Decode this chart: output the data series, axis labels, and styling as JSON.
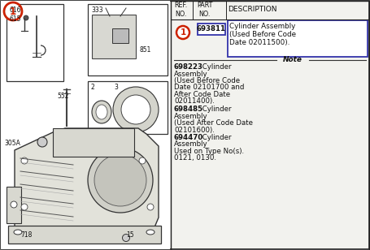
{
  "bg_color": "#f2f2ee",
  "border_color": "#222222",
  "text_color": "#111111",
  "divx": 0.462,
  "highlight_circle_color": "#cc2200",
  "highlight_box_color": "#3333aa",
  "header": {
    "ref_no": "REF.\nNO.",
    "part_no": "PART\nNO.",
    "description": "DESCRIPTION"
  },
  "part_number": "693811",
  "desc_line1": "Cylinder Assembly",
  "desc_line2": "(Used Before Code",
  "desc_line3": "Date 02011500).",
  "note_label": "Note",
  "notes": [
    {
      "bold": "698223",
      "plain": " Cylinder Assembly\n(Used Before Code\nDate 02101700 and\nAfter Code Date\n02011400)."
    },
    {
      "bold": "698485",
      "plain": " Cylinder\nAssembly\n(Used After Code Date\n02101600)."
    },
    {
      "bold": "694470",
      "plain": " Cylinder\nAssembly\nUsed on Type No(s).\n0121, 0130."
    }
  ]
}
